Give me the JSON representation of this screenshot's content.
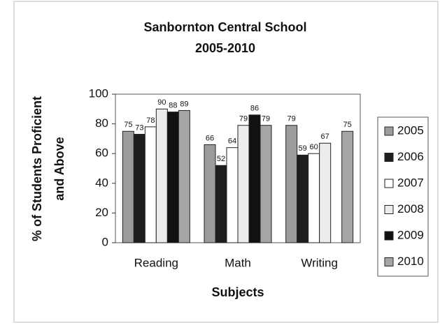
{
  "chart_data": {
    "type": "bar",
    "title": "Sanbornton Central School",
    "subtitle": "2005-2010",
    "ylabel": [
      "% of Students Proficient",
      "and Above"
    ],
    "xlabel": "Subjects",
    "categories": [
      "Reading",
      "Math",
      "Writing"
    ],
    "series": [
      {
        "name": "2005",
        "color": "#9c9c9c",
        "values": [
          75,
          66,
          79
        ]
      },
      {
        "name": "2006",
        "color": "#1e1e1e",
        "values": [
          73,
          52,
          59
        ]
      },
      {
        "name": "2007",
        "color": "#ffffff",
        "values": [
          78,
          64,
          60
        ]
      },
      {
        "name": "2008",
        "color": "#ececec",
        "values": [
          90,
          79,
          67
        ]
      },
      {
        "name": "2009",
        "color": "#111111",
        "values": [
          88,
          86,
          null
        ]
      },
      {
        "name": "2010",
        "color": "#a6a6a6",
        "values": [
          89,
          79,
          75
        ]
      }
    ],
    "ylim": [
      0,
      100
    ],
    "yticks": [
      0,
      20,
      40,
      60,
      80,
      100
    ],
    "grid": false,
    "legend": "right"
  }
}
